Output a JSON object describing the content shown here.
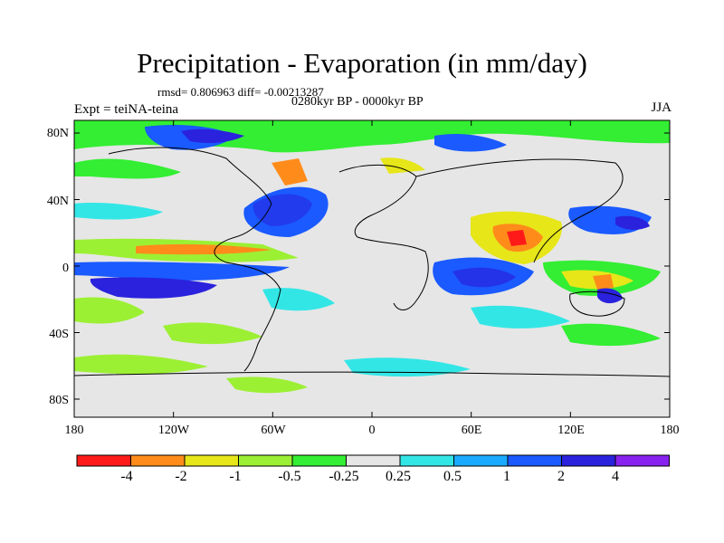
{
  "title": "Precipitation - Evaporation (in mm/day)",
  "stats": "rmsd= 0.806963 diff= -0.00213287",
  "period": "0280kyr BP - 0000kyr BP",
  "experiment": "Expt = teiNA-teina",
  "season": "JJA",
  "lat_labels": [
    "80N",
    "40N",
    "0",
    "40S",
    "80S"
  ],
  "lon_labels": [
    "180",
    "120W",
    "60W",
    "0",
    "60E",
    "120E",
    "180"
  ],
  "colorbar": {
    "labels": [
      "-4",
      "-2",
      "-1",
      "-0.5",
      "-0.25",
      "0.25",
      "0.5",
      "1",
      "2",
      "4"
    ],
    "colors": [
      "#ff1a1a",
      "#ff8c1a",
      "#e6e619",
      "#9cf033",
      "#33ee33",
      "#e6e6e6",
      "#33e6e6",
      "#1aaaff",
      "#1a5aff",
      "#2a22dd",
      "#8822ee"
    ]
  }
}
